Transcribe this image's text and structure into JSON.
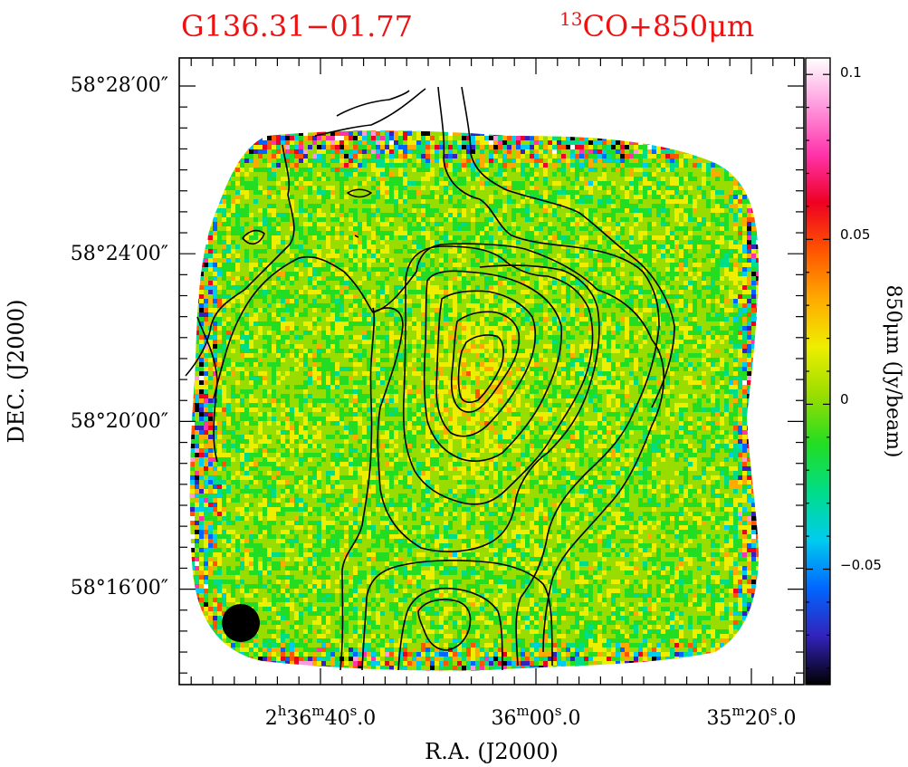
{
  "chart_data": {
    "type": "heatmap",
    "title": "G136.31−01.77",
    "subtitle": "13CO+850μm",
    "subtitle_parts": {
      "superscript": "13",
      "text": "CO+850μm"
    },
    "xlabel": "R.A. (J2000)",
    "ylabel": "DEC. (J2000)",
    "x_ticks": [
      {
        "h": "2",
        "hu": "h",
        "m": "36",
        "mu": "m",
        "s": "40",
        "su": "s",
        "frac": ".0"
      },
      {
        "h": "",
        "hu": "",
        "m": "36",
        "mu": "m",
        "s": "00",
        "su": "s",
        "frac": ".0"
      },
      {
        "h": "",
        "hu": "",
        "m": "35",
        "mu": "m",
        "s": "20",
        "su": "s",
        "frac": ".0"
      }
    ],
    "x_tick_labels": [
      "2h36m40.0s",
      "36m00.0s",
      "35m20.0s"
    ],
    "y_tick_labels": [
      "58°28′00″",
      "58°24′00″",
      "58°20′00″",
      "58°16′00″"
    ],
    "colorbar": {
      "label": "850μm (Jy/beam)",
      "range": [
        -0.085,
        0.105
      ],
      "ticks": [
        0.1,
        0.05,
        0,
        -0.05
      ],
      "tick_labels": [
        "0.1",
        "0.05",
        "0",
        "−0.05"
      ],
      "colors": [
        "#000000",
        "#3322bb",
        "#0066ff",
        "#00ccee",
        "#00dd88",
        "#22dd22",
        "#99dd00",
        "#eeee00",
        "#ffaa00",
        "#ff5500",
        "#ee0022",
        "#ff33aa",
        "#ff99dd",
        "#ffffff"
      ]
    },
    "map_background": "noise around 0 Jy/beam",
    "contours": "13CO integrated intensity, black lines",
    "beam": "filled black circle, lower-left"
  }
}
